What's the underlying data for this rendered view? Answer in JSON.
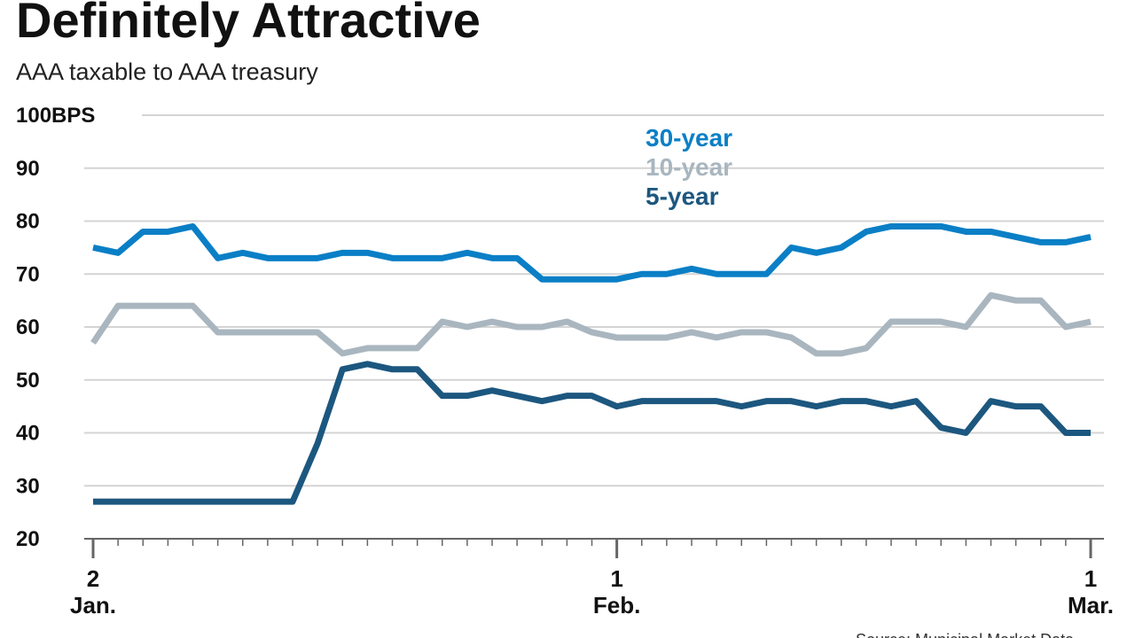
{
  "chart_data": {
    "type": "line",
    "title": "Definitely Attractive",
    "subtitle": "AAA taxable to AAA treasury",
    "source": "Source: Municipal Market Data",
    "categories": [
      "2\nJan.",
      null,
      null,
      null,
      null,
      null,
      null,
      null,
      null,
      null,
      null,
      null,
      null,
      null,
      null,
      null,
      null,
      null,
      null,
      null,
      null,
      "1\nFeb.",
      null,
      null,
      null,
      null,
      null,
      null,
      null,
      null,
      null,
      null,
      null,
      null,
      null,
      null,
      null,
      null,
      null,
      null,
      "1\nMar."
    ],
    "series": [
      {
        "name": "30-year",
        "color": "#0a7fc6",
        "values": [
          75,
          74,
          78,
          78,
          79,
          73,
          74,
          73,
          73,
          73,
          74,
          74,
          73,
          73,
          73,
          74,
          73,
          73,
          69,
          69,
          69,
          69,
          70,
          70,
          71,
          70,
          70,
          70,
          75,
          74,
          75,
          78,
          79,
          79,
          79,
          78,
          78,
          77,
          76,
          76,
          77
        ]
      },
      {
        "name": "10-year",
        "color": "#a9b6bf",
        "values": [
          57,
          64,
          64,
          64,
          64,
          59,
          59,
          59,
          59,
          59,
          55,
          56,
          56,
          56,
          61,
          60,
          61,
          60,
          60,
          61,
          59,
          58,
          58,
          58,
          59,
          58,
          59,
          59,
          58,
          55,
          55,
          56,
          61,
          61,
          61,
          60,
          66,
          65,
          65,
          60,
          61
        ]
      },
      {
        "name": "5-year",
        "color": "#1c577f",
        "values": [
          27,
          27,
          27,
          27,
          27,
          27,
          27,
          27,
          27,
          38,
          52,
          53,
          52,
          52,
          47,
          47,
          48,
          47,
          46,
          47,
          47,
          45,
          46,
          46,
          46,
          46,
          45,
          46,
          46,
          45,
          46,
          46,
          45,
          46,
          41,
          40,
          46,
          45,
          45,
          40,
          40
        ]
      }
    ],
    "ylim": [
      20,
      100
    ],
    "yticks": [
      20,
      30,
      40,
      50,
      60,
      70,
      80,
      90,
      {
        "value": 100,
        "label": "100BPS"
      }
    ],
    "grid": true
  }
}
